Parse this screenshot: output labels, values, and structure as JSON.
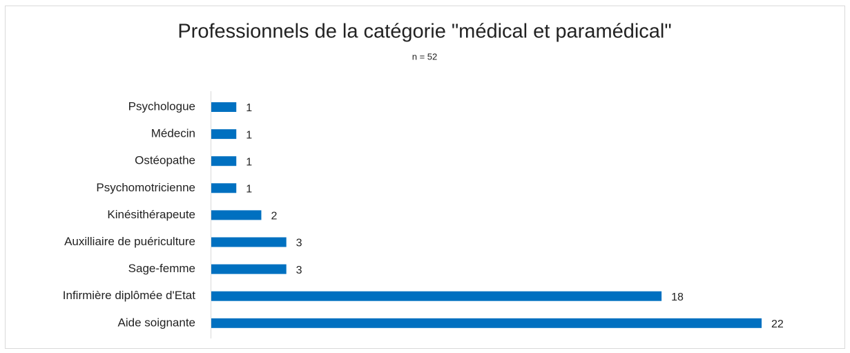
{
  "chart_data": {
    "type": "hbar",
    "title": "Professionnels de la catégorie \"médical et paramédical\"",
    "subtitle": "n = 52",
    "categories": [
      "Psychologue",
      "Médecin",
      "Ostéopathe",
      "Psychomotricienne",
      "Kinésithérapeute",
      "Auxilliaire de puériculture",
      "Sage-femme",
      "Infirmière diplômée d'Etat",
      "Aide soignante"
    ],
    "values": [
      1,
      1,
      1,
      1,
      2,
      3,
      3,
      18,
      22
    ],
    "color": "#0070c0"
  }
}
